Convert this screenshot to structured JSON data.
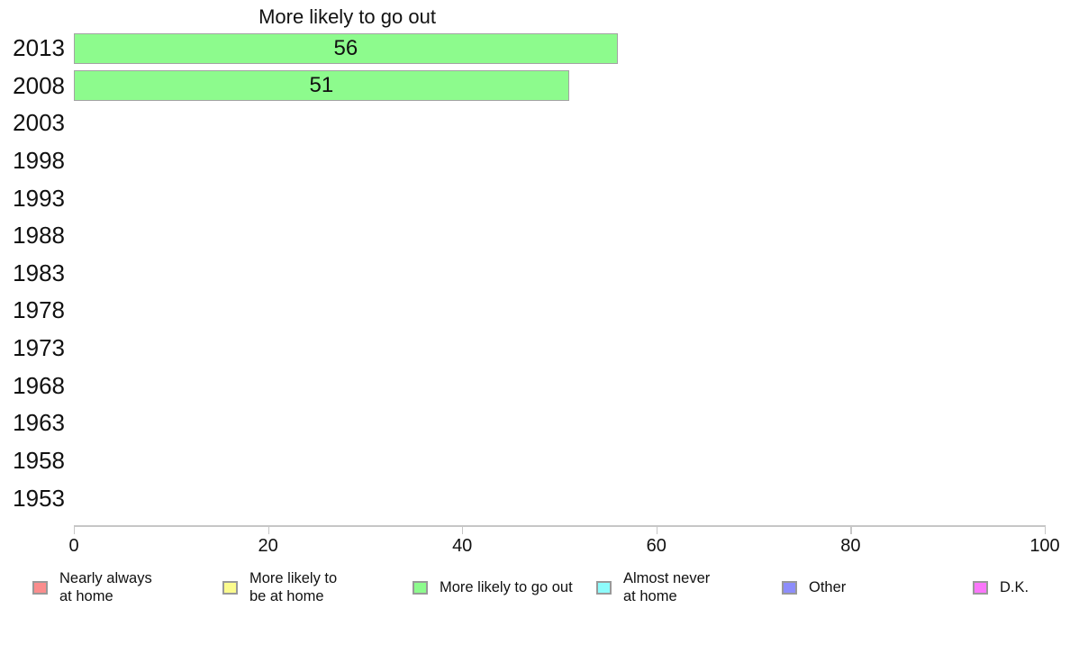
{
  "chart_data": {
    "type": "bar",
    "orientation": "horizontal",
    "title": "More likely to go out",
    "categories": [
      "2013",
      "2008",
      "2003",
      "1998",
      "1993",
      "1988",
      "1983",
      "1978",
      "1973",
      "1968",
      "1963",
      "1958",
      "1953"
    ],
    "values": [
      56,
      51,
      null,
      null,
      null,
      null,
      null,
      null,
      null,
      null,
      null,
      null,
      null
    ],
    "xlabel": "",
    "ylabel": "",
    "xlim": [
      0,
      100
    ],
    "xticks": [
      0,
      20,
      40,
      60,
      80,
      100
    ],
    "grid": false,
    "legend_position": "bottom",
    "bar_color": "#8DFB8D",
    "bar_border_color": "#A3A3A3",
    "axis_color": "#C6C6C6",
    "legend": [
      {
        "label": "Nearly always\nat home",
        "color": "#FB8D8D"
      },
      {
        "label": "More likely to\nbe at home",
        "color": "#FBFB8D"
      },
      {
        "label": "More likely to go out",
        "color": "#8DFB8D"
      },
      {
        "label": "Almost never\nat home",
        "color": "#8DFBFB"
      },
      {
        "label": "Other",
        "color": "#8D8DFB"
      },
      {
        "label": "D.K.",
        "color": "#FB76FB"
      }
    ]
  }
}
